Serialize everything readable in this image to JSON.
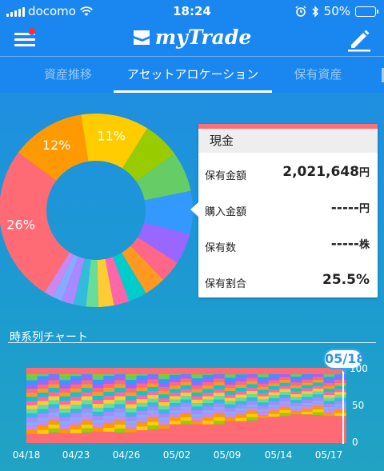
{
  "status_bar": {
    "carrier": "docomo",
    "time": "18:24",
    "battery": "50%",
    "battery_level": 0.5
  },
  "header": {
    "brand": "myTrade",
    "menu_icon": "hamburger-menu-icon",
    "edit_icon": "pencil-icon"
  },
  "tabs": [
    {
      "label": "資産推移",
      "active": false
    },
    {
      "label": "アセットアロケーション",
      "active": true
    },
    {
      "label": "保有資産",
      "active": false
    }
  ],
  "donut": {
    "slices": [
      {
        "name": "現金",
        "value": 25.5,
        "color": "#ff6b74",
        "label": "26%"
      },
      {
        "name": "",
        "value": 12,
        "color": "#ff9900",
        "label": "12%"
      },
      {
        "name": "",
        "value": 11,
        "color": "#ffcc00",
        "label": "11%"
      },
      {
        "name": "",
        "value": 6,
        "color": "#99cc00",
        "label": ""
      },
      {
        "name": "",
        "value": 6.5,
        "color": "#66cc66",
        "label": ""
      },
      {
        "name": "",
        "value": 7,
        "color": "#3399ff",
        "label": ""
      },
      {
        "name": "",
        "value": 5,
        "color": "#9966ff",
        "label": ""
      },
      {
        "name": "",
        "value": 3.5,
        "color": "#ff6688",
        "label": ""
      },
      {
        "name": "",
        "value": 3.5,
        "color": "#ff9922",
        "label": ""
      },
      {
        "name": "",
        "value": 3,
        "color": "#00cccc",
        "label": ""
      },
      {
        "name": "",
        "value": 2.5,
        "color": "#ff66aa",
        "label": ""
      },
      {
        "name": "",
        "value": 2.5,
        "color": "#ffcc33",
        "label": ""
      },
      {
        "name": "",
        "value": 2,
        "color": "#66dd99",
        "label": ""
      },
      {
        "name": "",
        "value": 2,
        "color": "#33bbdd",
        "label": ""
      },
      {
        "name": "",
        "value": 2,
        "color": "#aa88ff",
        "label": ""
      },
      {
        "name": "",
        "value": 1.5,
        "color": "#88aaff",
        "label": ""
      },
      {
        "name": "",
        "value": 1.5,
        "color": "#cc88ee",
        "label": ""
      }
    ]
  },
  "detail_card": {
    "title": "現金",
    "rows": [
      {
        "label": "保有金額",
        "value": "2,021,648",
        "unit": "円"
      },
      {
        "label": "購入金額",
        "value": "-----",
        "unit": "円"
      },
      {
        "label": "保有数",
        "value": "-----",
        "unit": "株"
      },
      {
        "label": "保有割合",
        "value": "25.5%",
        "unit": ""
      }
    ]
  },
  "timeseries": {
    "title": "時系列チャート",
    "selected_date": "05/18",
    "y_ticks": [
      "100",
      "50",
      "0"
    ],
    "x_ticks": [
      "04/18",
      "04/23",
      "04/26",
      "05/02",
      "05/09",
      "05/14",
      "05/17"
    ]
  },
  "chart_data": {
    "type": "area",
    "title": "時系列チャート",
    "xlabel": "",
    "ylabel": "",
    "ylim": [
      0,
      100
    ],
    "x_ticks": [
      "04/18",
      "04/23",
      "04/26",
      "05/02",
      "05/09",
      "05/14",
      "05/17"
    ],
    "stacked": true,
    "percent": true,
    "band_colors": [
      "#ff6b74",
      "#ff9900",
      "#ffcc00",
      "#99cc00",
      "#66cc66",
      "#3399ff",
      "#9966ff",
      "#ff6688",
      "#ff9922",
      "#00cccc",
      "#ff66aa",
      "#ffcc33",
      "#66dd99",
      "#33bbdd",
      "#aa88ff",
      "#88aaff",
      "#cc88ee"
    ],
    "cash_share": [
      12,
      12,
      14,
      13,
      13,
      14,
      15,
      15,
      14,
      14,
      17,
      18,
      19,
      25,
      25,
      25,
      25,
      25,
      29,
      29,
      30,
      33,
      35,
      36,
      38,
      38,
      37,
      36,
      36
    ]
  }
}
